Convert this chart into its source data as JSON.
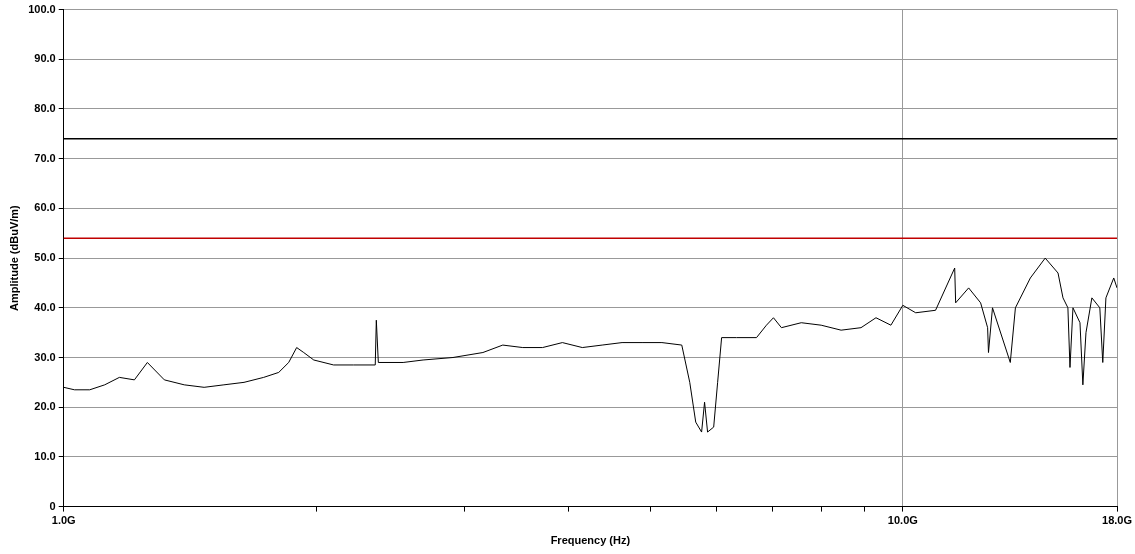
{
  "chart_data": {
    "type": "line",
    "xlabel": "Frequency (Hz)",
    "ylabel": "Amplitude (dBuV/m)",
    "log": "x",
    "grid": true,
    "legend": false,
    "marker": "none",
    "line_style": "solid",
    "xlim": [
      1,
      18
    ],
    "xticks": [
      {
        "value": 1,
        "label": "1.0G"
      },
      {
        "value": 2,
        "label": null
      },
      {
        "value": 3,
        "label": null
      },
      {
        "value": 4,
        "label": null
      },
      {
        "value": 5,
        "label": null
      },
      {
        "value": 6,
        "label": null
      },
      {
        "value": 7,
        "label": null
      },
      {
        "value": 8,
        "label": null
      },
      {
        "value": 9,
        "label": null
      },
      {
        "value": 10,
        "label": "10.0G"
      },
      {
        "value": 18,
        "label": "18.0G"
      }
    ],
    "ylim": [
      0,
      100
    ],
    "yticks": [
      0,
      {
        "value": 10,
        "label": "10.0"
      },
      {
        "value": 20,
        "label": "20.0"
      },
      {
        "value": 30,
        "label": "30.0"
      },
      {
        "value": 40,
        "label": "40.0"
      },
      {
        "value": 50,
        "label": "50.0"
      },
      {
        "value": 60,
        "label": "60.0"
      },
      {
        "value": 70,
        "label": "70.0"
      },
      {
        "value": 80,
        "label": "80.0"
      },
      {
        "value": 90,
        "label": "90.0"
      },
      {
        "value": 100,
        "label": "100.0"
      }
    ],
    "ref_lines": [
      {
        "axis": "y",
        "value": 74,
        "color": "#000000"
      },
      {
        "axis": "y",
        "value": 54,
        "color": "#c00000"
      }
    ],
    "x": [
      1.0,
      1.03,
      1.074,
      1.119,
      1.165,
      1.214,
      1.258,
      1.318,
      1.392,
      1.47,
      1.552,
      1.64,
      1.731,
      1.804,
      1.854,
      1.895,
      1.932,
      1.986,
      2.097,
      2.215,
      2.351,
      2.358,
      2.371,
      2.538,
      2.681,
      2.91,
      3.159,
      3.336,
      3.524,
      3.721,
      3.929,
      4.15,
      4.382,
      4.628,
      4.889,
      5.163,
      5.452,
      5.573,
      5.665,
      5.757,
      5.804,
      5.852,
      5.951,
      6.016,
      6.082,
      6.336,
      6.693,
      6.878,
      7.012,
      7.167,
      7.568,
      7.993,
      8.442,
      8.916,
      9.29,
      9.678,
      10.0,
      10.36,
      10.94,
      11.53,
      11.56,
      11.98,
      12.38,
      12.62,
      12.65,
      12.79,
      13.43,
      13.62,
      14.19,
      14.78,
      15.31,
      15.52,
      15.73,
      15.82,
      15.95,
      16.26,
      16.39,
      16.53,
      16.8,
      17.17,
      17.31,
      17.46,
      17.84,
      18.0
    ],
    "series": [
      {
        "color": "#000000",
        "values": [
          24,
          23.5,
          23.5,
          24.5,
          26,
          25.5,
          29,
          25.5,
          24.5,
          24,
          24.5,
          25,
          26,
          27,
          29,
          32,
          31,
          29.5,
          28.5,
          28.5,
          28.5,
          37.5,
          29,
          29,
          29.5,
          30,
          31,
          32.5,
          32,
          32,
          33,
          32,
          32.5,
          33,
          33,
          33,
          32.5,
          25,
          17,
          15,
          21,
          15,
          16,
          25,
          34,
          34,
          34,
          36.5,
          38,
          36,
          37,
          36.5,
          35.5,
          36,
          38,
          36.5,
          40.5,
          39,
          39.5,
          48,
          41,
          44,
          41,
          36,
          31,
          40,
          29,
          40,
          46,
          50,
          47,
          42,
          40,
          28,
          40,
          37,
          24.5,
          35,
          42,
          40,
          29,
          42,
          46,
          44
        ]
      }
    ]
  }
}
